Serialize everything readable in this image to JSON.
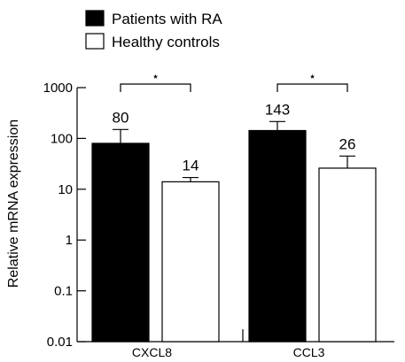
{
  "chart_data": {
    "type": "bar",
    "scale": "log",
    "ylabel": "Relative mRNA expression",
    "xlabel": "",
    "ylim": [
      0.01,
      1000
    ],
    "yticks": [
      "1000",
      "100",
      "10",
      "1",
      "0.1",
      "0.01"
    ],
    "ytick_values": [
      1000,
      100,
      10,
      1,
      0.1,
      0.01
    ],
    "categories": [
      "CXCL8",
      "CCL3"
    ],
    "series": [
      {
        "name": "Patients with RA",
        "values": [
          80,
          143
        ],
        "error_upper": [
          150,
          215
        ],
        "labels": [
          "80",
          "143"
        ],
        "color": "#000000"
      },
      {
        "name": "Healthy controls",
        "values": [
          14,
          26
        ],
        "error_upper": [
          17,
          45
        ],
        "labels": [
          "14",
          "26"
        ],
        "color": "#ffffff"
      }
    ],
    "significance": [
      {
        "category": "CXCL8",
        "label": "⋆"
      },
      {
        "category": "CCL3",
        "label": "⋆"
      }
    ],
    "legend": "top-left"
  }
}
